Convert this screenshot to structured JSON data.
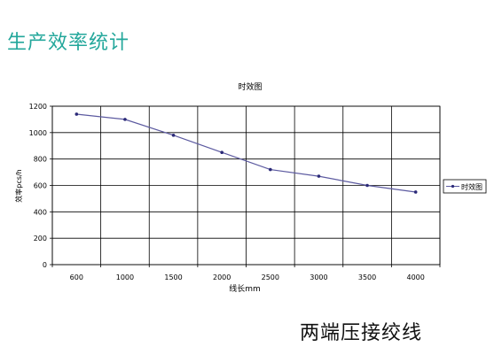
{
  "page": {
    "title": "生产效率统计",
    "caption": "两端压接绞线"
  },
  "colors": {
    "title": "#23a79b",
    "series": "#5c5aa0",
    "marker": "#2b2a78",
    "grid": "#000000"
  },
  "chart_data": {
    "type": "line",
    "title": "时效图",
    "xlabel": "线长mm",
    "ylabel": "效率pcs/h",
    "categories": [
      "600",
      "1000",
      "1500",
      "2000",
      "2500",
      "3000",
      "3500",
      "4000"
    ],
    "ylim": [
      0,
      1200
    ],
    "yticks": [
      0,
      200,
      400,
      600,
      800,
      1000,
      1200
    ],
    "series": [
      {
        "name": "时效图",
        "values": [
          1140,
          1100,
          980,
          850,
          720,
          670,
          600,
          550
        ]
      }
    ],
    "grid": true,
    "legend": "right"
  }
}
